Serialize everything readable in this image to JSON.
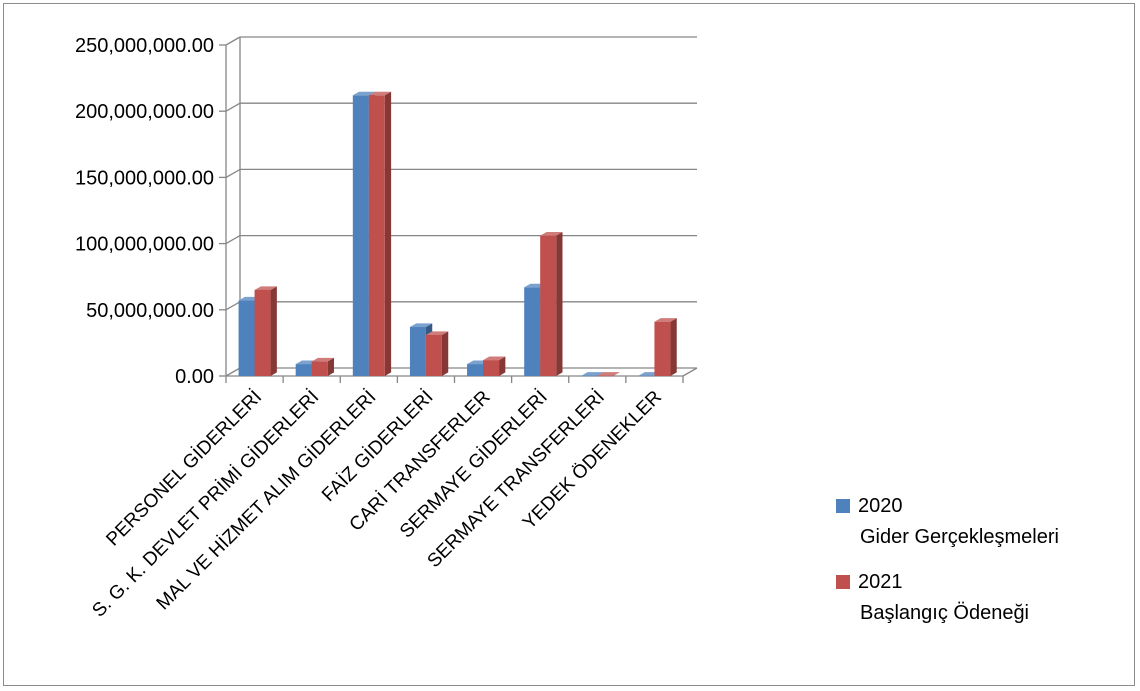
{
  "chart_data": {
    "type": "bar",
    "title": "",
    "xlabel": "",
    "ylabel": "",
    "ylim": [
      0,
      250000000
    ],
    "yticks": [
      0,
      50000000,
      100000000,
      150000000,
      200000000,
      250000000
    ],
    "ytick_labels": [
      "0.00",
      "50,000,000.00",
      "100,000,000.00",
      "150,000,000.00",
      "200,000,000.00",
      "250,000,000.00"
    ],
    "grid": true,
    "legend_position": "right",
    "categories": [
      "PERSONEL GİDERLERİ",
      "S. G. K. DEVLET PRİMİ GİDERLERİ",
      "MAL VE HİZMET ALIM GİDERLERİ",
      "FAİZ GİDERLERİ",
      "CARİ TRANSFERLER",
      "SERMAYE GİDERLERİ",
      "SERMAYE TRANSFERLERİ",
      "YEDEK ÖDENEKLER"
    ],
    "series": [
      {
        "name": "2020 Gider Gerçekleşmeleri",
        "legend_lines": [
          "2020",
          "Gider Gerçekleşmeleri"
        ],
        "color": "#4F81BD",
        "values": [
          57000000,
          9000000,
          212000000,
          37000000,
          9000000,
          67000000,
          200000,
          200000
        ]
      },
      {
        "name": "2021 Başlangıç Ödeneği",
        "legend_lines": [
          "2021",
          "Başlangıç Ödeneği"
        ],
        "color": "#C0504D",
        "values": [
          65000000,
          11000000,
          212000000,
          31000000,
          12000000,
          106000000,
          200000,
          41000000
        ]
      }
    ]
  }
}
